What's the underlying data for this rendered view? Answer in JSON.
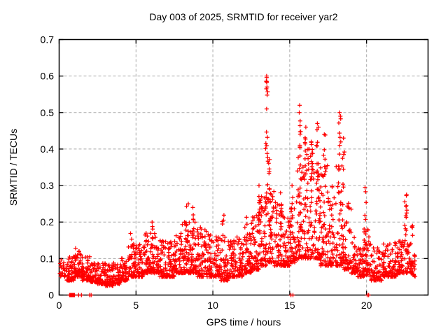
{
  "window": {
    "title": "Day 003 of 2025, SRMTID for receiver yar2"
  },
  "chart_data": {
    "type": "scatter",
    "title": "Day 003 of 2025, SRMTID for receiver yar2",
    "xlabel": "GPS time / hours",
    "ylabel": "SRMTID / TECUs",
    "xlim": [
      0,
      24
    ],
    "ylim": [
      0,
      0.7
    ],
    "xticks": [
      0,
      5,
      10,
      15,
      20
    ],
    "xtick_labels": [
      "0",
      "5",
      "10",
      "15",
      "20"
    ],
    "yticks": [
      0,
      0.1,
      0.2,
      0.3,
      0.4,
      0.5,
      0.6,
      0.7
    ],
    "ytick_labels": [
      "0",
      "0.1",
      "0.2",
      "0.3",
      "0.4",
      "0.5",
      "0.6",
      "0.7"
    ],
    "grid": true,
    "grid_style": "dashed",
    "legend": "none",
    "marker": "plus",
    "marker_color": "#ff0000",
    "grid_color": "#a9a9a9",
    "axis_color": "#000000",
    "background": "#ffffff",
    "seed": 20250103,
    "band_bins_format": "[hour_start, hour_end, y_min_TECUs, y_max_TECUs, n_points]",
    "series": [
      {
        "name": "SRMTID",
        "band_bins": [
          [
            0.0,
            0.35,
            0.05,
            0.1,
            14
          ],
          [
            0.35,
            0.5,
            0.05,
            0.08,
            8
          ],
          [
            0.5,
            1.0,
            0.04,
            0.11,
            55
          ],
          [
            1.0,
            1.5,
            0.05,
            0.13,
            58
          ],
          [
            1.5,
            2.0,
            0.04,
            0.11,
            52
          ],
          [
            2.0,
            2.5,
            0.035,
            0.09,
            50
          ],
          [
            2.5,
            3.0,
            0.03,
            0.09,
            50
          ],
          [
            3.0,
            3.5,
            0.025,
            0.085,
            46
          ],
          [
            3.5,
            4.0,
            0.03,
            0.09,
            46
          ],
          [
            4.0,
            4.5,
            0.04,
            0.11,
            48
          ],
          [
            4.5,
            5.0,
            0.05,
            0.14,
            50
          ],
          [
            5.0,
            5.5,
            0.05,
            0.14,
            50
          ],
          [
            5.5,
            6.0,
            0.06,
            0.17,
            52
          ],
          [
            6.0,
            6.5,
            0.06,
            0.18,
            52
          ],
          [
            6.5,
            7.0,
            0.05,
            0.15,
            52
          ],
          [
            7.0,
            7.5,
            0.05,
            0.15,
            52
          ],
          [
            7.5,
            8.0,
            0.06,
            0.17,
            52
          ],
          [
            8.0,
            8.5,
            0.06,
            0.21,
            55
          ],
          [
            8.5,
            9.0,
            0.06,
            0.21,
            55
          ],
          [
            9.0,
            9.5,
            0.05,
            0.19,
            52
          ],
          [
            9.5,
            10.0,
            0.05,
            0.18,
            52
          ],
          [
            10.0,
            10.5,
            0.05,
            0.16,
            52
          ],
          [
            10.5,
            11.0,
            0.04,
            0.16,
            52
          ],
          [
            11.0,
            11.5,
            0.05,
            0.15,
            52
          ],
          [
            11.5,
            12.0,
            0.05,
            0.16,
            52
          ],
          [
            12.0,
            12.5,
            0.06,
            0.17,
            52
          ],
          [
            12.5,
            13.0,
            0.07,
            0.22,
            55
          ],
          [
            13.0,
            13.5,
            0.08,
            0.28,
            55
          ],
          [
            13.5,
            14.0,
            0.09,
            0.3,
            52
          ],
          [
            14.0,
            14.5,
            0.08,
            0.27,
            52
          ],
          [
            14.5,
            15.0,
            0.08,
            0.22,
            52
          ],
          [
            15.0,
            15.5,
            0.09,
            0.26,
            52
          ],
          [
            15.5,
            16.0,
            0.1,
            0.38,
            56
          ],
          [
            16.0,
            16.5,
            0.1,
            0.4,
            58
          ],
          [
            16.5,
            17.0,
            0.1,
            0.37,
            55
          ],
          [
            17.0,
            17.5,
            0.08,
            0.36,
            55
          ],
          [
            17.5,
            18.0,
            0.08,
            0.3,
            50
          ],
          [
            18.0,
            18.5,
            0.08,
            0.36,
            52
          ],
          [
            18.5,
            19.0,
            0.07,
            0.27,
            50
          ],
          [
            19.0,
            19.4,
            0.06,
            0.16,
            40
          ],
          [
            19.4,
            19.8,
            0.05,
            0.13,
            38
          ],
          [
            19.8,
            20.3,
            0.05,
            0.18,
            45
          ],
          [
            20.3,
            21.0,
            0.04,
            0.13,
            60
          ],
          [
            21.0,
            21.5,
            0.05,
            0.14,
            48
          ],
          [
            21.5,
            22.0,
            0.05,
            0.15,
            48
          ],
          [
            22.0,
            22.5,
            0.06,
            0.15,
            48
          ],
          [
            22.5,
            23.0,
            0.06,
            0.2,
            48
          ],
          [
            23.0,
            23.2,
            0.05,
            0.12,
            14
          ]
        ],
        "spike_columns_format": "[hour, y_min, y_max, n_points]",
        "spike_columns": [
          [
            4.7,
            0.1,
            0.18,
            6
          ],
          [
            6.05,
            0.12,
            0.2,
            6
          ],
          [
            8.3,
            0.14,
            0.25,
            7
          ],
          [
            8.7,
            0.14,
            0.24,
            6
          ],
          [
            9.25,
            0.13,
            0.21,
            5
          ],
          [
            10.65,
            0.14,
            0.22,
            5
          ],
          [
            12.15,
            0.14,
            0.22,
            4
          ],
          [
            13.0,
            0.15,
            0.3,
            7
          ],
          [
            13.5,
            0.25,
            0.6,
            18
          ],
          [
            13.65,
            0.2,
            0.4,
            8
          ],
          [
            14.4,
            0.16,
            0.28,
            8
          ],
          [
            15.15,
            0.15,
            0.3,
            8
          ],
          [
            15.65,
            0.25,
            0.52,
            14
          ],
          [
            16.05,
            0.25,
            0.46,
            10
          ],
          [
            16.4,
            0.22,
            0.42,
            9
          ],
          [
            16.8,
            0.25,
            0.47,
            10
          ],
          [
            17.25,
            0.22,
            0.44,
            9
          ],
          [
            18.25,
            0.22,
            0.5,
            14
          ],
          [
            18.5,
            0.18,
            0.43,
            8
          ],
          [
            19.9,
            0.15,
            0.3,
            8
          ],
          [
            22.55,
            0.14,
            0.28,
            12
          ]
        ],
        "zero_value_points_x": [
          0.68,
          0.72,
          0.76,
          0.8,
          0.84,
          0.88,
          0.92,
          0.96,
          1.0,
          1.27,
          1.45,
          1.98,
          2.08,
          15.08,
          15.21,
          20.04,
          20.14
        ],
        "notable_peaks": [
          [
            13.5,
            0.6
          ],
          [
            13.5,
            0.585
          ],
          [
            13.52,
            0.57
          ],
          [
            13.48,
            0.565
          ],
          [
            15.65,
            0.52
          ],
          [
            15.62,
            0.5
          ],
          [
            18.25,
            0.5
          ],
          [
            18.3,
            0.49
          ],
          [
            16.8,
            0.47
          ],
          [
            16.05,
            0.46
          ],
          [
            13.5,
            0.51
          ],
          [
            17.25,
            0.44
          ],
          [
            16.4,
            0.42
          ],
          [
            18.5,
            0.43
          ],
          [
            15.15,
            0.3
          ],
          [
            19.9,
            0.295
          ],
          [
            13.0,
            0.3
          ],
          [
            14.4,
            0.28
          ],
          [
            22.6,
            0.275
          ],
          [
            8.4,
            0.25
          ],
          [
            8.7,
            0.24
          ],
          [
            6.05,
            0.2
          ]
        ]
      }
    ]
  }
}
